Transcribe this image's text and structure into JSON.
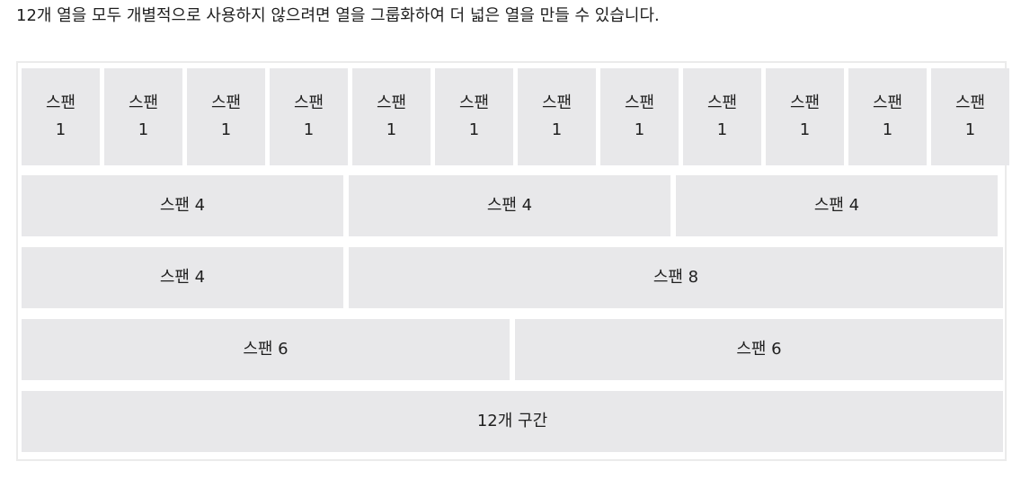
{
  "intro_text": "12개 열을 모두 개별적으로 사용하지 않으려면 열을 그룹화하여 더 넓은 열을 만들 수 있습니다.",
  "rows": [
    {
      "cells": [
        {
          "label": "스팬",
          "num": "1"
        },
        {
          "label": "스팬",
          "num": "1"
        },
        {
          "label": "스팬",
          "num": "1"
        },
        {
          "label": "스팬",
          "num": "1"
        },
        {
          "label": "스팬",
          "num": "1"
        },
        {
          "label": "스팬",
          "num": "1"
        },
        {
          "label": "스팬",
          "num": "1"
        },
        {
          "label": "스팬",
          "num": "1"
        },
        {
          "label": "스팬",
          "num": "1"
        },
        {
          "label": "스팬",
          "num": "1"
        },
        {
          "label": "스팬",
          "num": "1"
        },
        {
          "label": "스팬",
          "num": "1"
        }
      ]
    },
    {
      "cells": [
        {
          "text": "스팬 4"
        },
        {
          "text": "스팬 4"
        },
        {
          "text": "스팬 4"
        }
      ]
    },
    {
      "cells": [
        {
          "text": "스팬 4"
        },
        {
          "text": "스팬 8"
        }
      ]
    },
    {
      "cells": [
        {
          "text": "스팬 6"
        },
        {
          "text": "스팬 6"
        }
      ]
    },
    {
      "cells": [
        {
          "text": "12개 구간"
        }
      ]
    }
  ],
  "colors": {
    "cell_background": "#e8e8ea",
    "frame_border": "#ebebeb",
    "text": "#1f1f1f"
  }
}
